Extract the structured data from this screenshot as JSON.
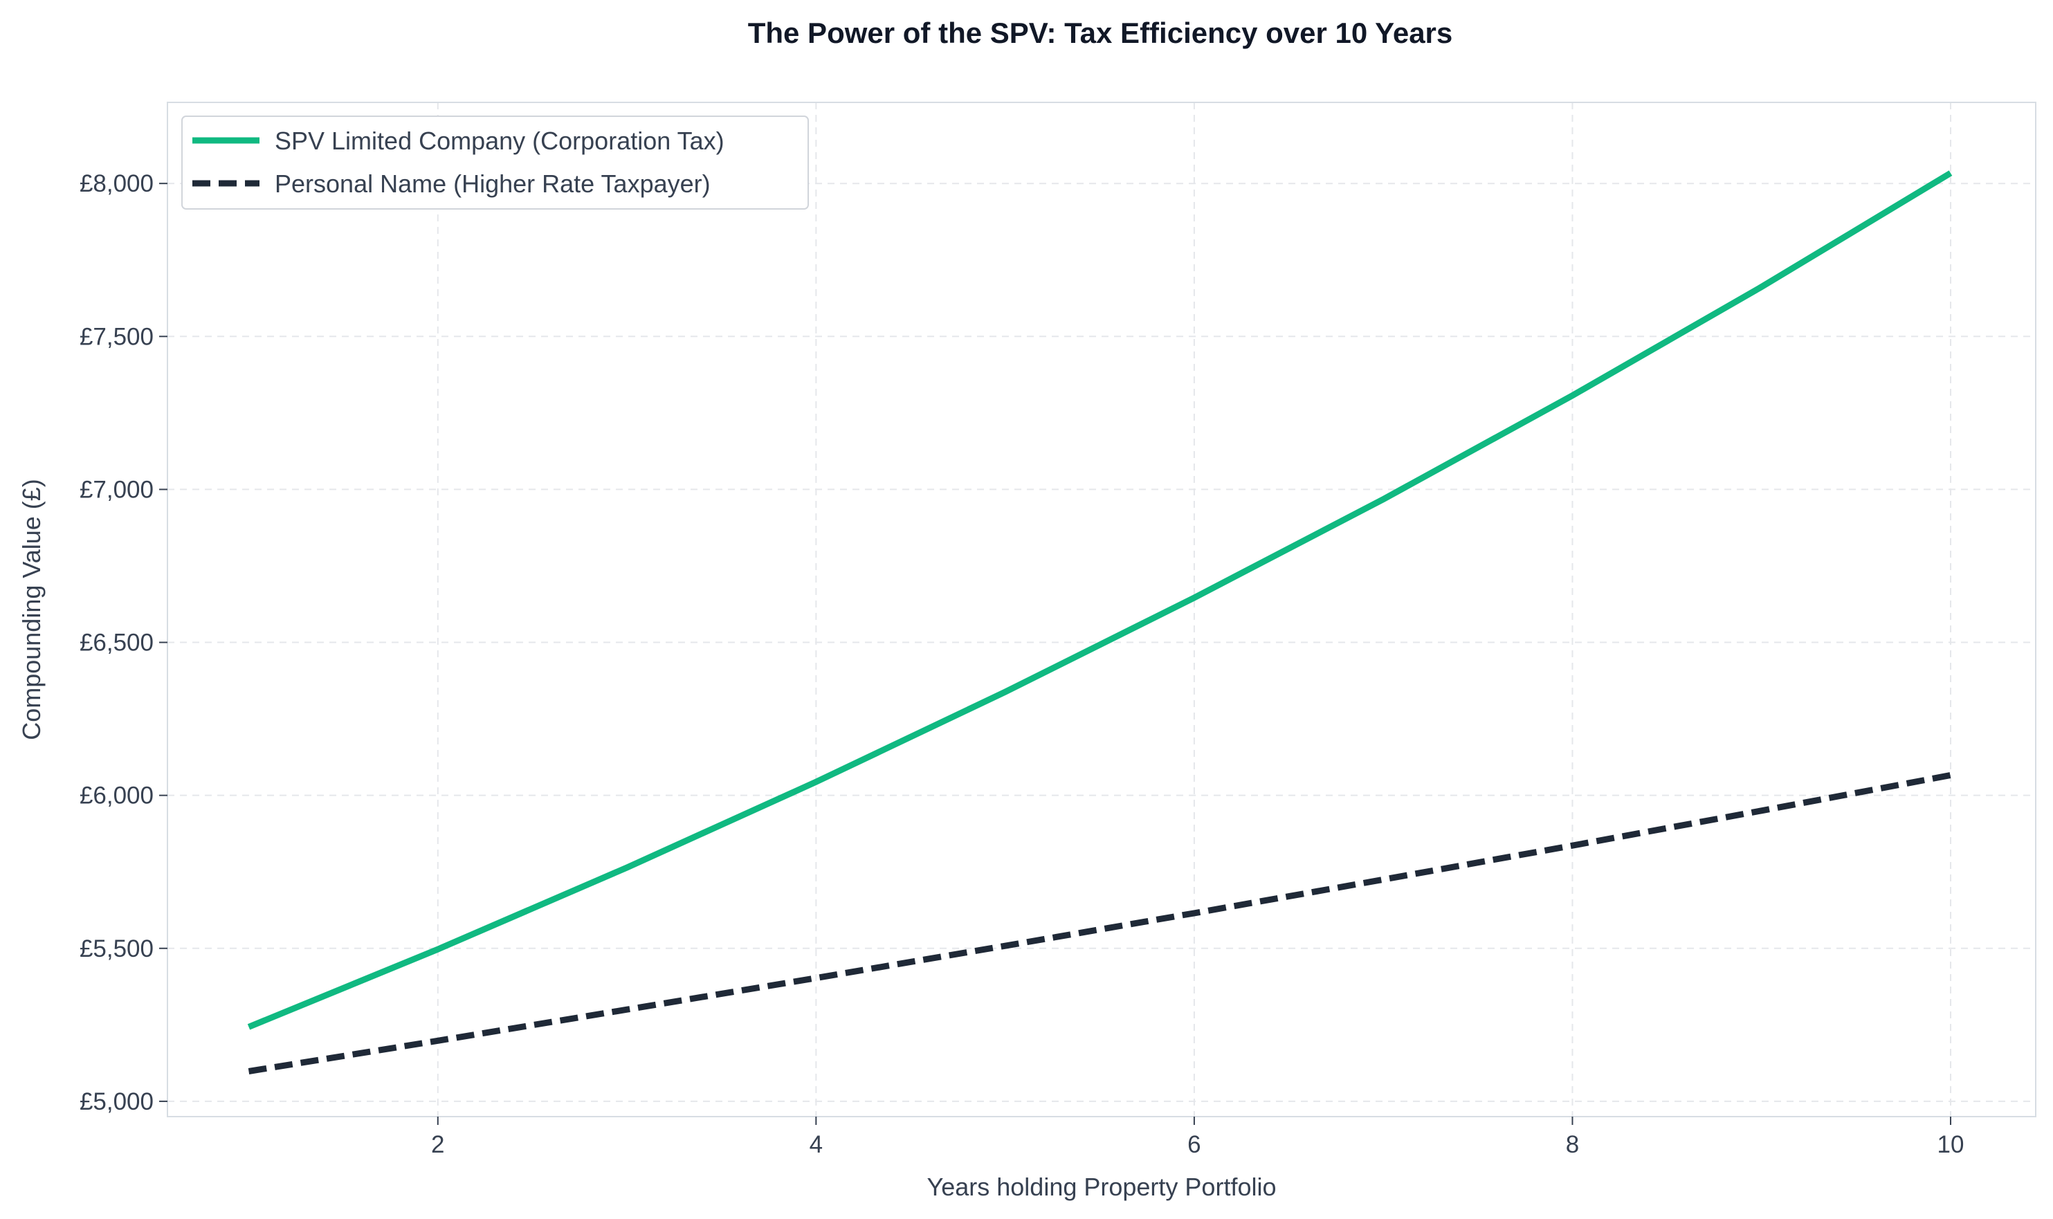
{
  "chart_data": {
    "type": "line",
    "title": "The Power of the SPV: Tax Efficiency over 10 Years",
    "xlabel": "Years holding Property Portfolio",
    "ylabel": "Compounding Value (£)",
    "x": [
      1,
      2,
      3,
      4,
      5,
      6,
      7,
      8,
      9,
      10
    ],
    "xlim": [
      0.57,
      10.45
    ],
    "ylim": [
      4950,
      8265
    ],
    "xticks": [
      2,
      4,
      6,
      8,
      10
    ],
    "yticks": [
      5000,
      5500,
      6000,
      6500,
      7000,
      7500,
      8000
    ],
    "ytick_labels": [
      "£5,000",
      "£5,500",
      "£6,000",
      "£6,500",
      "£7,000",
      "£7,500",
      "£8,000"
    ],
    "grid": true,
    "legend_position": "top-left",
    "series": [
      {
        "name": "SPV Limited Company (Corporation Tax)",
        "color": "#10b981",
        "style": "solid",
        "values": [
          5243,
          5497,
          5764,
          6044,
          6338,
          6646,
          6968,
          7307,
          7662,
          8034
        ]
      },
      {
        "name": "Personal Name (Higher Rate Taxpayer)",
        "color": "#1f2937",
        "style": "dashed",
        "values": [
          5098,
          5198,
          5300,
          5403,
          5508,
          5615,
          5725,
          5836,
          5950,
          6066
        ]
      }
    ]
  }
}
